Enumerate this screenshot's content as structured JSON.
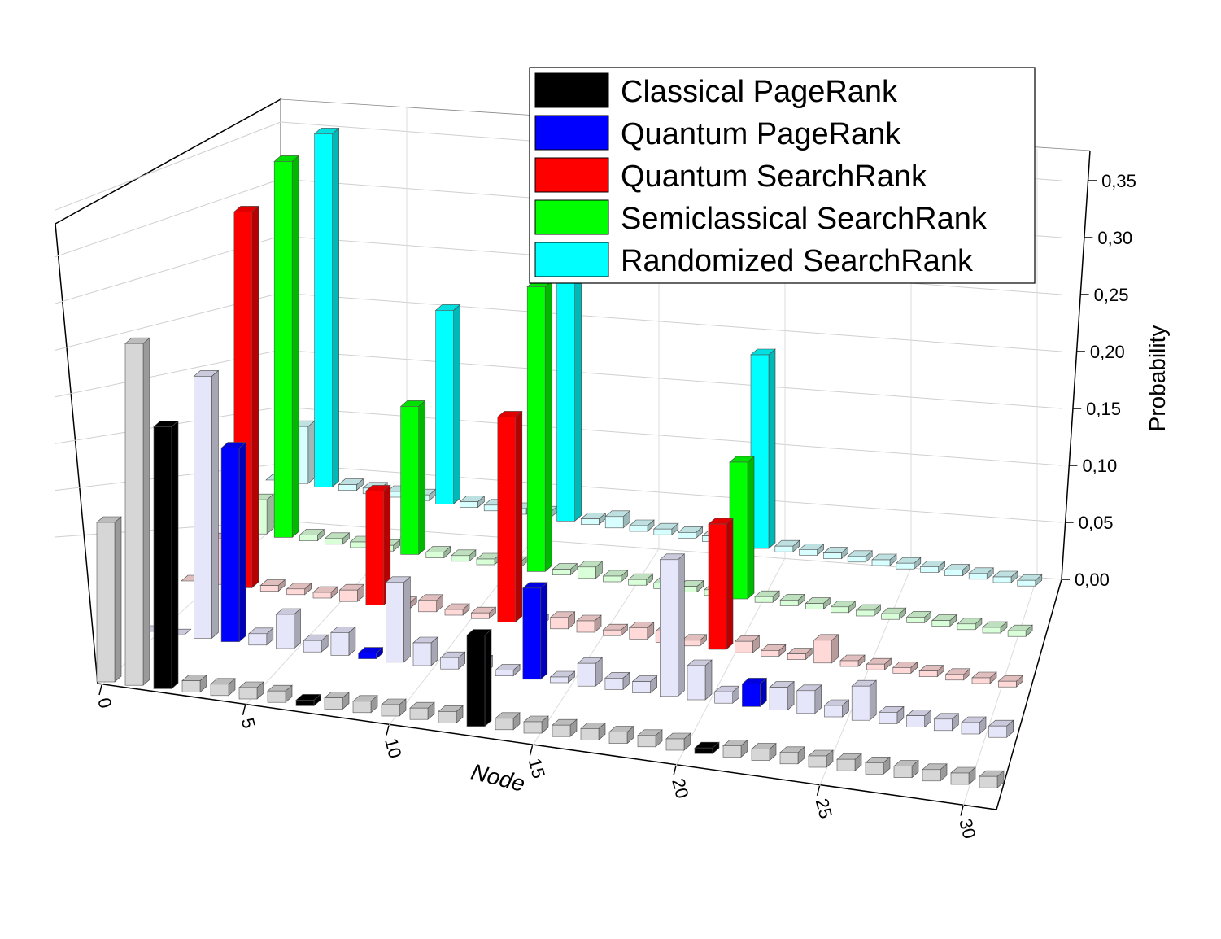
{
  "chart_data": {
    "type": "bar3d",
    "x_label": "Node",
    "y_label": "Probability",
    "xlim": [
      0,
      31
    ],
    "xticks": [
      0,
      5,
      10,
      15,
      20,
      25,
      30
    ],
    "ylim": [
      0,
      0.38
    ],
    "yticks": [
      {
        "value": 0,
        "label": "0,00"
      },
      {
        "value": 0.05,
        "label": "0,05"
      },
      {
        "value": 0.1,
        "label": "0,10"
      },
      {
        "value": 0.15,
        "label": "0,15"
      },
      {
        "value": 0.2,
        "label": "0,20"
      },
      {
        "value": 0.25,
        "label": "0,25"
      },
      {
        "value": 0.3,
        "label": "0,30"
      },
      {
        "value": 0.35,
        "label": "0,35"
      }
    ],
    "grid": true,
    "legend": "upper right",
    "series": [
      {
        "name": "Classical PageRank",
        "color": "#000000",
        "faded_color": "#d6d6d6",
        "highlight": [
          2,
          7,
          13,
          21
        ],
        "values": [
          0.14,
          0.3,
          0.23,
          0.01,
          0.01,
          0.01,
          0.01,
          0.005,
          0.01,
          0.01,
          0.01,
          0.01,
          0.01,
          0.08,
          0.01,
          0.01,
          0.01,
          0.01,
          0.01,
          0.01,
          0.01,
          0.005,
          0.01,
          0.01,
          0.01,
          0.01,
          0.01,
          0.01,
          0.01,
          0.01,
          0.01,
          0.01
        ]
      },
      {
        "name": "Quantum PageRank",
        "color": "#0000ff",
        "faded_color": "#e6e6fa",
        "highlight": [
          3,
          8,
          14,
          22
        ],
        "values": [
          0,
          0,
          0.23,
          0.17,
          0.01,
          0.03,
          0.01,
          0.02,
          0.005,
          0.07,
          0.02,
          0.01,
          0.01,
          0.005,
          0.08,
          0.005,
          0.02,
          0.01,
          0.01,
          0.12,
          0.03,
          0.01,
          0.02,
          0.02,
          0.02,
          0.01,
          0.03,
          0.01,
          0.01,
          0.01,
          0.01,
          0.01
        ]
      },
      {
        "name": "Quantum SearchRank",
        "color": "#ff0000",
        "faded_color": "#ffd8d8",
        "highlight": [
          2,
          7,
          12,
          20
        ],
        "values": [
          0,
          0.04,
          0.33,
          0.005,
          0.005,
          0.005,
          0.01,
          0.1,
          0.005,
          0.01,
          0.005,
          0.005,
          0.18,
          0.005,
          0.01,
          0.01,
          0.005,
          0.01,
          0.01,
          0.005,
          0.11,
          0.01,
          0.005,
          0.005,
          0.02,
          0.005,
          0.005,
          0.005,
          0.005,
          0.005,
          0.005,
          0.005
        ]
      },
      {
        "name": "Semiclassical SearchRank",
        "color": "#00ff00",
        "faded_color": "#d8ffd8",
        "highlight": [
          2,
          7,
          12,
          20
        ],
        "values": [
          0,
          0.03,
          0.33,
          0.005,
          0.005,
          0.005,
          0.005,
          0.13,
          0.005,
          0.005,
          0.005,
          0.005,
          0.25,
          0.005,
          0.01,
          0.005,
          0.005,
          0.005,
          0.005,
          0.005,
          0.12,
          0.005,
          0.005,
          0.005,
          0.005,
          0.005,
          0.005,
          0.005,
          0.005,
          0.005,
          0.005,
          0.005
        ]
      },
      {
        "name": "Randomized SearchRank",
        "color": "#00ffff",
        "faded_color": "#d8ffff",
        "highlight": [
          2,
          7,
          12,
          20
        ],
        "values": [
          0,
          0.05,
          0.31,
          0.005,
          0.005,
          0.005,
          0.005,
          0.17,
          0.005,
          0.005,
          0.005,
          0.005,
          0.22,
          0.005,
          0.01,
          0.005,
          0.005,
          0.005,
          0.005,
          0.005,
          0.17,
          0.005,
          0.005,
          0.005,
          0.005,
          0.005,
          0.005,
          0.005,
          0.005,
          0.005,
          0.005,
          0.005
        ]
      }
    ]
  }
}
